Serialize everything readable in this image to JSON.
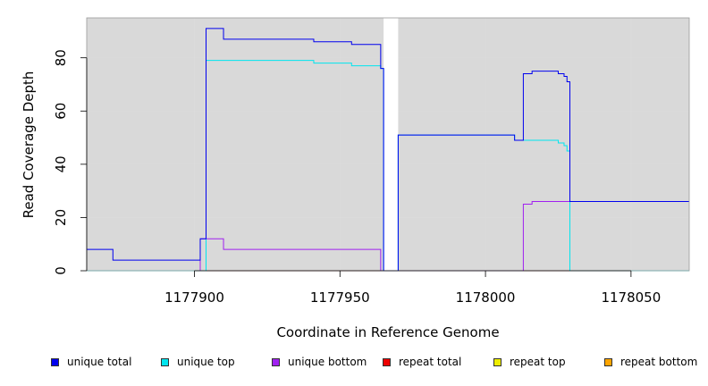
{
  "chart_data": {
    "type": "line",
    "title": "",
    "xlabel": "Coordinate in Reference Genome",
    "ylabel": "Read Coverage Depth",
    "xlim": [
      1177863,
      1178070
    ],
    "ylim": [
      0,
      95
    ],
    "x_ticks": [
      1177900,
      1177950,
      1178000,
      1178050
    ],
    "y_ticks": [
      0,
      20,
      40,
      60,
      80
    ],
    "x_tick_labels": [
      "1177900",
      "1177950",
      "1178000",
      "1178050"
    ],
    "y_tick_labels": [
      "0",
      "20",
      "40",
      "60",
      "80"
    ],
    "background": "#d9d9d9",
    "grid": true,
    "gap_region": [
      1177965,
      1177970
    ],
    "series": [
      {
        "name": "unique total",
        "color": "#0000ee",
        "x": [
          1177863,
          1177872,
          1177872,
          1177902,
          1177902,
          1177904,
          1177904,
          1177910,
          1177910,
          1177941,
          1177941,
          1177954,
          1177954,
          1177964,
          1177964,
          1177965,
          1177965,
          1177970,
          1177970,
          1178010,
          1178010,
          1178013,
          1178013,
          1178016,
          1178016,
          1178025,
          1178025,
          1178027,
          1178027,
          1178028,
          1178028,
          1178029,
          1178029,
          1178070
        ],
        "y": [
          8,
          8,
          4,
          4,
          12,
          12,
          91,
          91,
          87,
          87,
          86,
          86,
          85,
          85,
          76,
          76,
          0,
          0,
          51,
          51,
          49,
          49,
          74,
          74,
          75,
          75,
          74,
          74,
          73,
          73,
          71,
          71,
          26,
          26
        ]
      },
      {
        "name": "unique top",
        "color": "#00e5ee",
        "x": [
          1177863,
          1177904,
          1177904,
          1177941,
          1177941,
          1177954,
          1177954,
          1177964,
          1177964,
          1177965,
          1177965,
          1177970,
          1177970,
          1178010,
          1178010,
          1178013,
          1178013,
          1178025,
          1178025,
          1178027,
          1178027,
          1178028,
          1178028,
          1178029,
          1178029,
          1178070
        ],
        "y": [
          0,
          0,
          79,
          79,
          78,
          78,
          77,
          77,
          76,
          76,
          0,
          0,
          51,
          51,
          49,
          49,
          49,
          49,
          48,
          48,
          47,
          47,
          45,
          45,
          0,
          0
        ]
      },
      {
        "name": "unique bottom",
        "color": "#a020f0",
        "x": [
          1177863,
          1177902,
          1177902,
          1177910,
          1177910,
          1177964,
          1177964,
          1178013,
          1178013,
          1178016,
          1178016,
          1178029,
          1178029,
          1178070
        ],
        "y": [
          0,
          0,
          12,
          12,
          8,
          8,
          0,
          0,
          25,
          25,
          26,
          26,
          26,
          26
        ]
      },
      {
        "name": "repeat total",
        "color": "#ee0000",
        "x": [
          1177863,
          1178070
        ],
        "y": [
          0,
          0
        ]
      },
      {
        "name": "repeat top",
        "color": "#eeee00",
        "x": [
          1177863,
          1178070
        ],
        "y": [
          0,
          0
        ]
      },
      {
        "name": "repeat bottom",
        "color": "#ffa500",
        "x": [
          1177863,
          1178070
        ],
        "y": [
          0,
          0
        ]
      }
    ]
  }
}
